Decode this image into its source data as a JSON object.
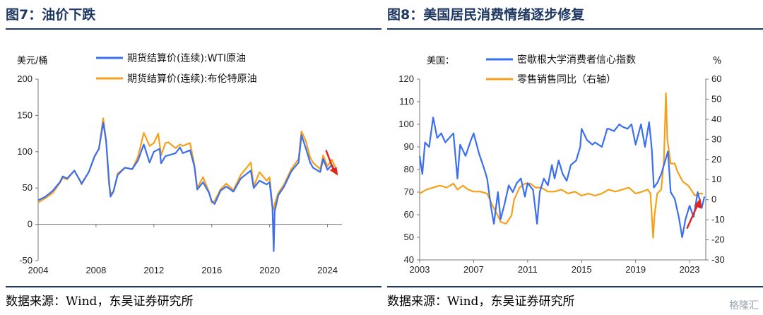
{
  "figure1": {
    "title": "图7：油价下跌",
    "source": "数据来源：Wind，东吴证券研究所"
  },
  "figure2": {
    "title": "图8：美国居民消费情绪逐步修复",
    "source": "数据来源：Wind，东吴证券研究所"
  },
  "watermark": "格隆汇",
  "colors": {
    "blue": "#3b6ef0",
    "orange": "#f5a01a",
    "arrow": "#e0261d",
    "navy": "#1f3864"
  },
  "chart_data": [
    {
      "type": "line",
      "title": "",
      "ylabel": "美元/桶",
      "xlim": [
        2004,
        2025
      ],
      "ylim": [
        -50,
        200
      ],
      "yticks": [
        -50,
        0,
        50,
        100,
        150,
        200
      ],
      "xticks": [
        2004,
        2008,
        2012,
        2016,
        2020,
        2024
      ],
      "legend_position": "top",
      "annotation": "red arrow pointing down at the end of the series",
      "series": [
        {
          "name": "期货结算价(连续):WTI原油",
          "color": "#3b6ef0",
          "points": [
            [
              2004.0,
              33
            ],
            [
              2004.5,
              38
            ],
            [
              2005.0,
              46
            ],
            [
              2005.5,
              58
            ],
            [
              2005.7,
              66
            ],
            [
              2006.0,
              63
            ],
            [
              2006.5,
              74
            ],
            [
              2006.9,
              60
            ],
            [
              2007.0,
              56
            ],
            [
              2007.5,
              72
            ],
            [
              2007.9,
              94
            ],
            [
              2008.2,
              104
            ],
            [
              2008.5,
              140
            ],
            [
              2008.7,
              115
            ],
            [
              2008.9,
              60
            ],
            [
              2009.0,
              38
            ],
            [
              2009.2,
              45
            ],
            [
              2009.5,
              68
            ],
            [
              2010.0,
              78
            ],
            [
              2010.5,
              76
            ],
            [
              2010.9,
              88
            ],
            [
              2011.3,
              110
            ],
            [
              2011.7,
              85
            ],
            [
              2012.0,
              100
            ],
            [
              2012.4,
              104
            ],
            [
              2012.5,
              84
            ],
            [
              2012.8,
              94
            ],
            [
              2013.0,
              95
            ],
            [
              2013.5,
              98
            ],
            [
              2013.8,
              106
            ],
            [
              2014.0,
              98
            ],
            [
              2014.5,
              102
            ],
            [
              2014.8,
              80
            ],
            [
              2015.0,
              48
            ],
            [
              2015.4,
              58
            ],
            [
              2015.8,
              44
            ],
            [
              2016.0,
              32
            ],
            [
              2016.2,
              28
            ],
            [
              2016.6,
              46
            ],
            [
              2017.0,
              52
            ],
            [
              2017.5,
              45
            ],
            [
              2018.0,
              63
            ],
            [
              2018.7,
              74
            ],
            [
              2018.9,
              50
            ],
            [
              2019.3,
              60
            ],
            [
              2019.8,
              55
            ],
            [
              2020.0,
              58
            ],
            [
              2020.2,
              22
            ],
            [
              2020.28,
              -37
            ],
            [
              2020.35,
              18
            ],
            [
              2020.6,
              40
            ],
            [
              2021.0,
              52
            ],
            [
              2021.5,
              73
            ],
            [
              2022.0,
              85
            ],
            [
              2022.2,
              123
            ],
            [
              2022.5,
              105
            ],
            [
              2022.8,
              85
            ],
            [
              2023.0,
              78
            ],
            [
              2023.5,
              72
            ],
            [
              2023.7,
              90
            ],
            [
              2024.0,
              75
            ],
            [
              2024.3,
              82
            ],
            [
              2024.6,
              70
            ]
          ]
        },
        {
          "name": "期货结算价(连续):布伦特原油",
          "color": "#f5a01a",
          "points": [
            [
              2004.0,
              30
            ],
            [
              2004.5,
              36
            ],
            [
              2005.0,
              43
            ],
            [
              2005.5,
              57
            ],
            [
              2005.7,
              64
            ],
            [
              2006.0,
              62
            ],
            [
              2006.5,
              74
            ],
            [
              2006.9,
              60
            ],
            [
              2007.0,
              55
            ],
            [
              2007.5,
              72
            ],
            [
              2007.9,
              93
            ],
            [
              2008.2,
              104
            ],
            [
              2008.5,
              146
            ],
            [
              2008.7,
              115
            ],
            [
              2008.9,
              55
            ],
            [
              2009.0,
              42
            ],
            [
              2009.2,
              45
            ],
            [
              2009.5,
              70
            ],
            [
              2010.0,
              78
            ],
            [
              2010.5,
              76
            ],
            [
              2010.9,
              93
            ],
            [
              2011.3,
              126
            ],
            [
              2011.7,
              108
            ],
            [
              2012.0,
              112
            ],
            [
              2012.3,
              125
            ],
            [
              2012.5,
              95
            ],
            [
              2012.8,
              112
            ],
            [
              2013.0,
              113
            ],
            [
              2013.5,
              105
            ],
            [
              2013.8,
              110
            ],
            [
              2014.0,
              108
            ],
            [
              2014.5,
              112
            ],
            [
              2014.8,
              82
            ],
            [
              2015.0,
              50
            ],
            [
              2015.4,
              65
            ],
            [
              2015.8,
              45
            ],
            [
              2016.0,
              30
            ],
            [
              2016.2,
              32
            ],
            [
              2016.6,
              48
            ],
            [
              2017.0,
              56
            ],
            [
              2017.5,
              47
            ],
            [
              2018.0,
              68
            ],
            [
              2018.7,
              85
            ],
            [
              2018.9,
              52
            ],
            [
              2019.3,
              72
            ],
            [
              2019.8,
              60
            ],
            [
              2020.0,
              65
            ],
            [
              2020.2,
              25
            ],
            [
              2020.3,
              20
            ],
            [
              2020.35,
              28
            ],
            [
              2020.6,
              43
            ],
            [
              2021.0,
              55
            ],
            [
              2021.5,
              76
            ],
            [
              2022.0,
              90
            ],
            [
              2022.2,
              128
            ],
            [
              2022.5,
              115
            ],
            [
              2022.8,
              92
            ],
            [
              2023.0,
              85
            ],
            [
              2023.5,
              76
            ],
            [
              2023.7,
              95
            ],
            [
              2024.0,
              80
            ],
            [
              2024.3,
              89
            ],
            [
              2024.6,
              76
            ]
          ]
        }
      ]
    },
    {
      "type": "line",
      "title": "美国：",
      "xlim": [
        2003,
        2024.2
      ],
      "xticks": [
        2003,
        2007,
        2011,
        2015,
        2019,
        2023
      ],
      "ylim": [
        40,
        120
      ],
      "yticks": [
        40,
        50,
        60,
        70,
        80,
        90,
        100,
        110,
        120
      ],
      "y2label": "%",
      "y2lim": [
        -30,
        60
      ],
      "y2ticks": [
        -30,
        -20,
        -10,
        0,
        10,
        20,
        30,
        40,
        50,
        60
      ],
      "legend_position": "top",
      "annotation": "red arrow pointing up at the end of the series",
      "series": [
        {
          "name": "密歇根大学消费者信心指数",
          "axis": "left",
          "color": "#3b6ef0",
          "points": [
            [
              2003.0,
              86
            ],
            [
              2003.2,
              78
            ],
            [
              2003.4,
              92
            ],
            [
              2003.7,
              90
            ],
            [
              2004.0,
              103
            ],
            [
              2004.3,
              94
            ],
            [
              2004.6,
              96
            ],
            [
              2004.9,
              92
            ],
            [
              2005.2,
              94
            ],
            [
              2005.5,
              96
            ],
            [
              2005.8,
              76
            ],
            [
              2006.0,
              91
            ],
            [
              2006.4,
              86
            ],
            [
              2006.8,
              93
            ],
            [
              2007.0,
              96
            ],
            [
              2007.4,
              87
            ],
            [
              2007.8,
              80
            ],
            [
              2008.0,
              76
            ],
            [
              2008.3,
              63
            ],
            [
              2008.5,
              56
            ],
            [
              2008.8,
              70
            ],
            [
              2009.0,
              58
            ],
            [
              2009.3,
              65
            ],
            [
              2009.6,
              73
            ],
            [
              2009.9,
              70
            ],
            [
              2010.2,
              74
            ],
            [
              2010.5,
              76
            ],
            [
              2010.8,
              68
            ],
            [
              2011.0,
              74
            ],
            [
              2011.4,
              71
            ],
            [
              2011.7,
              56
            ],
            [
              2011.9,
              70
            ],
            [
              2012.2,
              76
            ],
            [
              2012.5,
              73
            ],
            [
              2012.8,
              82
            ],
            [
              2013.0,
              76
            ],
            [
              2013.3,
              84
            ],
            [
              2013.6,
              78
            ],
            [
              2013.9,
              75
            ],
            [
              2014.2,
              82
            ],
            [
              2014.6,
              84
            ],
            [
              2014.9,
              90
            ],
            [
              2015.0,
              98
            ],
            [
              2015.4,
              93
            ],
            [
              2015.8,
              91
            ],
            [
              2016.0,
              92
            ],
            [
              2016.5,
              90
            ],
            [
              2016.9,
              98
            ],
            [
              2017.0,
              98
            ],
            [
              2017.4,
              97
            ],
            [
              2017.8,
              100
            ],
            [
              2018.0,
              99
            ],
            [
              2018.4,
              98
            ],
            [
              2018.7,
              100
            ],
            [
              2019.0,
              91
            ],
            [
              2019.4,
              100
            ],
            [
              2019.7,
              90
            ],
            [
              2020.0,
              101
            ],
            [
              2020.2,
              89
            ],
            [
              2020.35,
              72
            ],
            [
              2020.6,
              74
            ],
            [
              2020.9,
              78
            ],
            [
              2021.2,
              84
            ],
            [
              2021.4,
              88
            ],
            [
              2021.6,
              70
            ],
            [
              2021.9,
              67
            ],
            [
              2022.2,
              59
            ],
            [
              2022.45,
              50
            ],
            [
              2022.7,
              58
            ],
            [
              2023.0,
              64
            ],
            [
              2023.3,
              59
            ],
            [
              2023.6,
              70
            ],
            [
              2023.9,
              63
            ],
            [
              2024.1,
              68
            ]
          ]
        },
        {
          "name": "零售销售同比（右轴）",
          "axis": "right",
          "color": "#f5a01a",
          "points": [
            [
              2003.0,
              3
            ],
            [
              2003.5,
              5
            ],
            [
              2004.0,
              6
            ],
            [
              2004.5,
              7
            ],
            [
              2005.0,
              6
            ],
            [
              2005.5,
              8
            ],
            [
              2005.8,
              5
            ],
            [
              2006.2,
              7
            ],
            [
              2006.6,
              5
            ],
            [
              2007.0,
              4
            ],
            [
              2007.5,
              4
            ],
            [
              2008.0,
              3
            ],
            [
              2008.4,
              -3
            ],
            [
              2008.8,
              -8
            ],
            [
              2009.0,
              -11
            ],
            [
              2009.4,
              -12
            ],
            [
              2009.8,
              -8
            ],
            [
              2010.0,
              0
            ],
            [
              2010.4,
              6
            ],
            [
              2010.8,
              8
            ],
            [
              2011.2,
              8
            ],
            [
              2011.6,
              6
            ],
            [
              2012.0,
              6
            ],
            [
              2012.5,
              4
            ],
            [
              2013.0,
              4
            ],
            [
              2013.5,
              5
            ],
            [
              2014.0,
              3
            ],
            [
              2014.5,
              4
            ],
            [
              2015.0,
              2
            ],
            [
              2015.5,
              3
            ],
            [
              2016.0,
              2
            ],
            [
              2016.5,
              3
            ],
            [
              2017.0,
              5
            ],
            [
              2017.5,
              4
            ],
            [
              2018.0,
              5
            ],
            [
              2018.5,
              6
            ],
            [
              2019.0,
              3
            ],
            [
              2019.5,
              4
            ],
            [
              2019.9,
              5
            ],
            [
              2020.1,
              3
            ],
            [
              2020.3,
              -19
            ],
            [
              2020.4,
              -8
            ],
            [
              2020.6,
              3
            ],
            [
              2020.9,
              5
            ],
            [
              2021.1,
              20
            ],
            [
              2021.25,
              53
            ],
            [
              2021.35,
              30
            ],
            [
              2021.6,
              18
            ],
            [
              2021.9,
              18
            ],
            [
              2022.1,
              14
            ],
            [
              2022.5,
              9
            ],
            [
              2022.9,
              7
            ],
            [
              2023.1,
              5
            ],
            [
              2023.4,
              2
            ],
            [
              2023.7,
              3
            ],
            [
              2024.0,
              3
            ]
          ]
        }
      ]
    }
  ]
}
